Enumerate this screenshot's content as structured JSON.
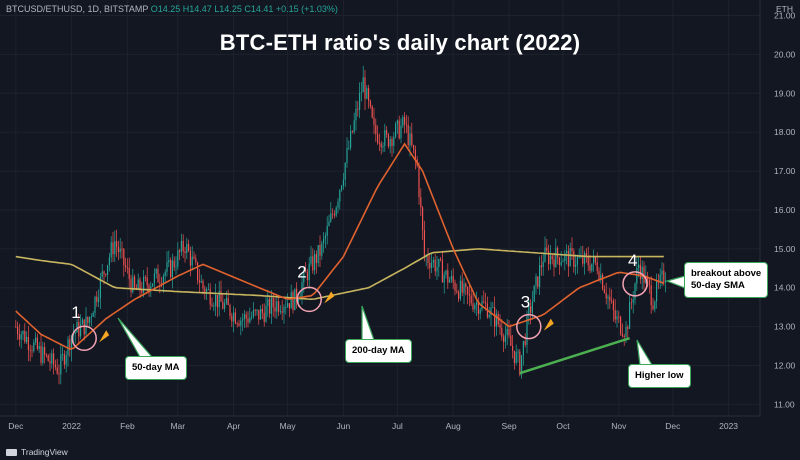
{
  "header": {
    "symbol": "BTCUSD/ETHUSD, 1D, BITSTAMP",
    "open": "O14.25",
    "high": "H14.47",
    "low": "L14.25",
    "close": "C14.41",
    "change": "+0.15 (+1.03%)"
  },
  "title": "BTC-ETH ratio's daily chart (2022)",
  "brand": "TradingView",
  "colors": {
    "background": "#131722",
    "up": "#26a69a",
    "down": "#ef5350",
    "ma50": "#e0622e",
    "ma200": "#c8b560",
    "marker": "#f5a623",
    "circle": "#f4a3b3",
    "support": "#4caf50"
  },
  "annotations": {
    "ma50": "50-day MA",
    "ma200": "200-day MA",
    "higher_low": "Higher low",
    "breakout_line1": "breakout above",
    "breakout_line2": "50-day SMA",
    "marker_labels": [
      "1",
      "2",
      "3",
      "4"
    ]
  },
  "chart_data": {
    "type": "line",
    "title": "BTC-ETH ratio's daily chart (2022)",
    "xlabel": "",
    "ylabel": "",
    "unit": "ETH",
    "ylim": [
      10.7,
      21.4
    ],
    "x_tick_labels": [
      "Dec",
      "2022",
      "Feb",
      "Mar",
      "Apr",
      "May",
      "Jun",
      "Jul",
      "Aug",
      "Sep",
      "Oct",
      "Nov",
      "Dec",
      "2023"
    ],
    "y_tick_labels": [
      "11.00",
      "12.00",
      "13.00",
      "14.00",
      "15.00",
      "16.00",
      "17.00",
      "18.00",
      "19.00",
      "20.00",
      "21.00"
    ],
    "series": [
      {
        "name": "BTCUSD/ETHUSD",
        "x": [
          "2021-12-01",
          "2021-12-15",
          "2021-12-25",
          "2022-01-01",
          "2022-01-10",
          "2022-01-18",
          "2022-01-25",
          "2022-02-05",
          "2022-02-15",
          "2022-02-25",
          "2022-03-05",
          "2022-03-15",
          "2022-03-25",
          "2022-04-05",
          "2022-04-15",
          "2022-04-25",
          "2022-05-05",
          "2022-05-12",
          "2022-05-20",
          "2022-05-28",
          "2022-06-05",
          "2022-06-12",
          "2022-06-18",
          "2022-06-25",
          "2022-07-05",
          "2022-07-12",
          "2022-07-16",
          "2022-07-20",
          "2022-07-30",
          "2022-08-10",
          "2022-08-20",
          "2022-08-30",
          "2022-09-07",
          "2022-09-12",
          "2022-09-20",
          "2022-10-01",
          "2022-10-10",
          "2022-10-20",
          "2022-10-30",
          "2022-11-05",
          "2022-11-12",
          "2022-11-20",
          "2022-11-27"
        ],
        "values": [
          13.0,
          12.3,
          11.9,
          12.8,
          13.1,
          14.3,
          15.2,
          13.9,
          14.2,
          14.5,
          15.1,
          14.0,
          13.6,
          13.2,
          13.3,
          13.6,
          13.7,
          14.4,
          15.0,
          16.2,
          17.8,
          19.3,
          18.0,
          17.8,
          18.2,
          17.1,
          14.8,
          14.7,
          14.2,
          13.7,
          13.5,
          12.8,
          12.0,
          13.3,
          14.8,
          14.8,
          14.7,
          14.6,
          13.2,
          12.9,
          14.6,
          13.7,
          14.4
        ]
      },
      {
        "name": "50-day MA",
        "x": [
          "2021-12-01",
          "2021-12-15",
          "2022-01-01",
          "2022-01-20",
          "2022-02-05",
          "2022-03-01",
          "2022-03-15",
          "2022-04-15",
          "2022-05-01",
          "2022-05-15",
          "2022-06-01",
          "2022-06-20",
          "2022-07-05",
          "2022-07-15",
          "2022-08-01",
          "2022-08-15",
          "2022-09-01",
          "2022-09-20",
          "2022-10-10",
          "2022-11-01",
          "2022-11-15",
          "2022-11-27"
        ],
        "values": [
          13.4,
          12.8,
          12.4,
          13.2,
          13.7,
          14.3,
          14.6,
          14.0,
          13.7,
          13.8,
          14.8,
          16.6,
          17.7,
          17.0,
          15.0,
          13.6,
          13.0,
          13.3,
          14.0,
          14.4,
          14.3,
          14.1
        ]
      },
      {
        "name": "200-day MA",
        "x": [
          "2021-12-01",
          "2021-12-15",
          "2022-01-01",
          "2022-01-25",
          "2022-03-01",
          "2022-04-15",
          "2022-05-15",
          "2022-06-15",
          "2022-07-05",
          "2022-07-20",
          "2022-08-15",
          "2022-09-15",
          "2022-10-15",
          "2022-11-15",
          "2022-11-27"
        ],
        "values": [
          14.8,
          14.7,
          14.6,
          14.0,
          13.9,
          13.8,
          13.7,
          14.0,
          14.5,
          14.9,
          15.0,
          14.9,
          14.8,
          14.8,
          14.8
        ]
      }
    ],
    "events": [
      {
        "label": "1",
        "x": "2022-01-08",
        "y": 12.7
      },
      {
        "label": "2",
        "x": "2022-05-13",
        "y": 13.7
      },
      {
        "label": "3",
        "x": "2022-09-12",
        "y": 13.0
      },
      {
        "label": "4",
        "x": "2022-11-10",
        "y": 14.1
      }
    ],
    "support_line": {
      "x": [
        "2022-09-07",
        "2022-11-07"
      ],
      "values": [
        11.8,
        12.7
      ]
    }
  }
}
